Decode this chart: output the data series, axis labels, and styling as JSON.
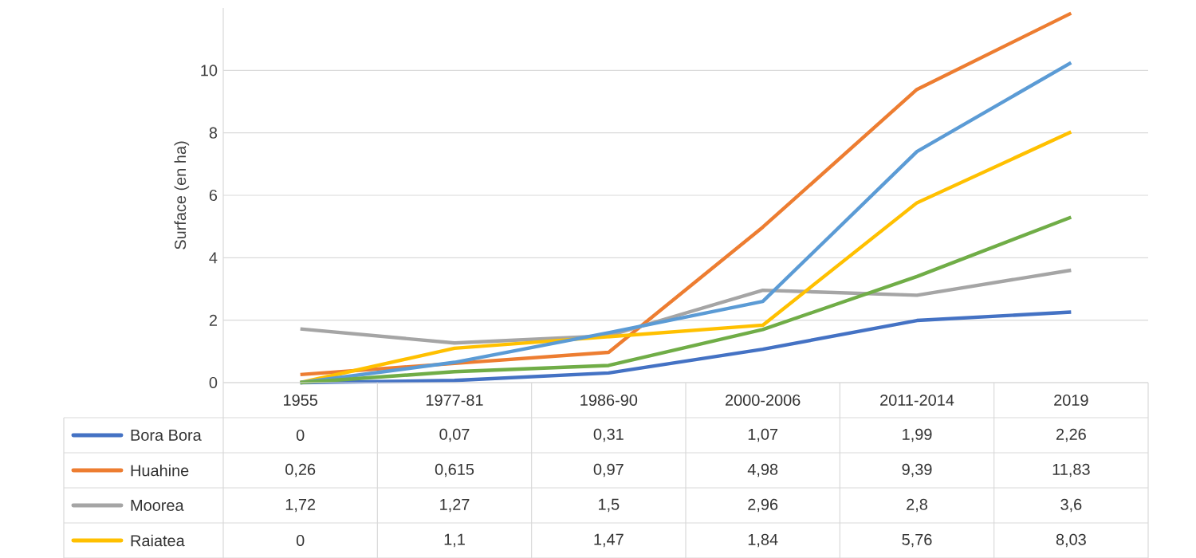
{
  "chart_data": {
    "type": "line",
    "ylabel": "Surface (en ha)",
    "categories": [
      "1955",
      "1977-81",
      "1986-90",
      "2000-2006",
      "2011-2014",
      "2019"
    ],
    "series": [
      {
        "name": "Bora Bora",
        "color": "#4472c4",
        "values": [
          0,
          0.07,
          0.31,
          1.07,
          1.99,
          2.26
        ],
        "value_labels": [
          "0",
          "0,07",
          "0,31",
          "1,07",
          "1,99",
          "2,26"
        ]
      },
      {
        "name": "Huahine",
        "color": "#ed7d31",
        "values": [
          0.26,
          0.615,
          0.97,
          4.98,
          9.39,
          11.83
        ],
        "value_labels": [
          "0,26",
          "0,615",
          "0,97",
          "4,98",
          "9,39",
          "11,83"
        ]
      },
      {
        "name": "Moorea",
        "color": "#a5a5a5",
        "values": [
          1.72,
          1.27,
          1.5,
          2.96,
          2.8,
          3.6
        ],
        "value_labels": [
          "1,72",
          "1,27",
          "1,5",
          "2,96",
          "2,8",
          "3,6"
        ]
      },
      {
        "name": "Raiatea",
        "color": "#ffc000",
        "values": [
          0,
          1.1,
          1.47,
          1.84,
          5.76,
          8.03
        ],
        "value_labels": [
          "0",
          "1,1",
          "1,47",
          "1,84",
          "5,76",
          "8,03"
        ]
      },
      {
        "color": "#5b9bd5",
        "values": [
          0,
          0.65,
          1.6,
          2.6,
          7.4,
          10.25
        ]
      },
      {
        "color": "#70ad47",
        "values": [
          0,
          0.35,
          0.55,
          1.7,
          3.4,
          5.3
        ]
      }
    ],
    "ylim": [
      0,
      12
    ],
    "yticks": [
      0,
      2,
      4,
      6,
      8,
      10
    ],
    "grid": "y",
    "legend": "bottom",
    "line_style": "solid"
  }
}
